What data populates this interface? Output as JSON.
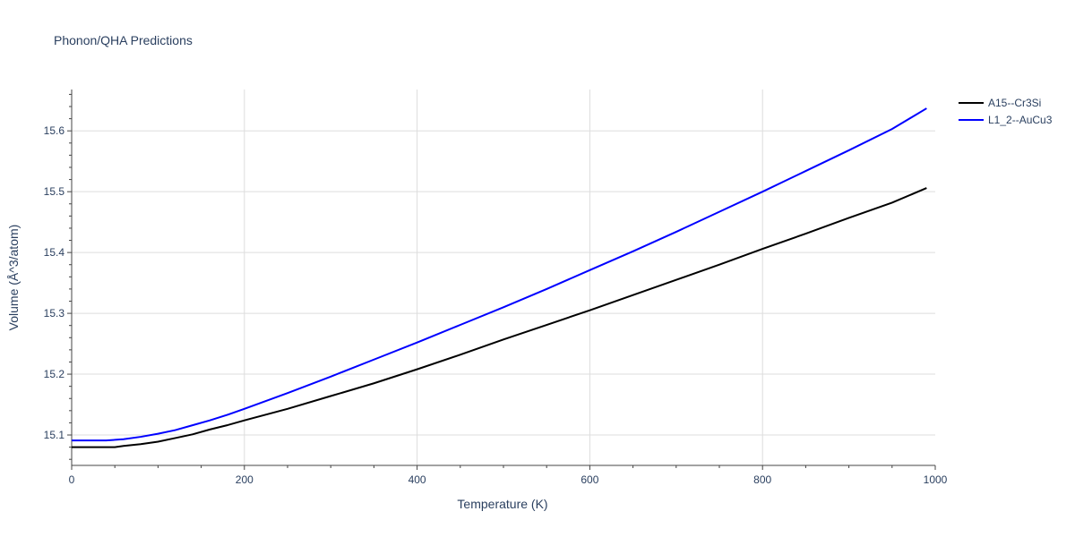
{
  "chart_data": {
    "type": "line",
    "title": "Phonon/QHA Predictions",
    "xlabel": "Temperature (K)",
    "ylabel": "Volume (Å^3/atom)",
    "xlim": [
      0,
      1000
    ],
    "ylim": [
      15.05,
      15.668
    ],
    "xticks": [
      "0",
      "200",
      "400",
      "600",
      "800",
      "1000"
    ],
    "yticks": [
      "15.1",
      "15.2",
      "15.3",
      "15.4",
      "15.5",
      "15.6"
    ],
    "grid": true,
    "legend_position": "top-right",
    "series": [
      {
        "name": "A15--Cr3Si",
        "color": "#000000",
        "points": [
          [
            0,
            15.08
          ],
          [
            20,
            15.08
          ],
          [
            40,
            15.08
          ],
          [
            50,
            15.08
          ],
          [
            60,
            15.082
          ],
          [
            80,
            15.085
          ],
          [
            100,
            15.089
          ],
          [
            120,
            15.095
          ],
          [
            140,
            15.101
          ],
          [
            160,
            15.109
          ],
          [
            180,
            15.116
          ],
          [
            200,
            15.124
          ],
          [
            250,
            15.143
          ],
          [
            300,
            15.164
          ],
          [
            350,
            15.185
          ],
          [
            400,
            15.208
          ],
          [
            450,
            15.232
          ],
          [
            500,
            15.257
          ],
          [
            550,
            15.281
          ],
          [
            600,
            15.305
          ],
          [
            650,
            15.33
          ],
          [
            700,
            15.355
          ],
          [
            750,
            15.38
          ],
          [
            800,
            15.406
          ],
          [
            850,
            15.431
          ],
          [
            900,
            15.457
          ],
          [
            950,
            15.482
          ],
          [
            990,
            15.506
          ]
        ]
      },
      {
        "name": "L1_2--AuCu3",
        "color": "#0000ff",
        "points": [
          [
            0,
            15.091
          ],
          [
            20,
            15.091
          ],
          [
            40,
            15.091
          ],
          [
            60,
            15.093
          ],
          [
            80,
            15.097
          ],
          [
            100,
            15.102
          ],
          [
            120,
            15.108
          ],
          [
            140,
            15.116
          ],
          [
            160,
            15.124
          ],
          [
            180,
            15.133
          ],
          [
            200,
            15.143
          ],
          [
            250,
            15.169
          ],
          [
            300,
            15.196
          ],
          [
            350,
            15.224
          ],
          [
            400,
            15.252
          ],
          [
            450,
            15.281
          ],
          [
            500,
            15.31
          ],
          [
            550,
            15.34
          ],
          [
            600,
            15.371
          ],
          [
            650,
            15.402
          ],
          [
            700,
            15.434
          ],
          [
            750,
            15.467
          ],
          [
            800,
            15.5
          ],
          [
            850,
            15.534
          ],
          [
            900,
            15.568
          ],
          [
            950,
            15.603
          ],
          [
            990,
            15.637
          ]
        ]
      }
    ]
  }
}
